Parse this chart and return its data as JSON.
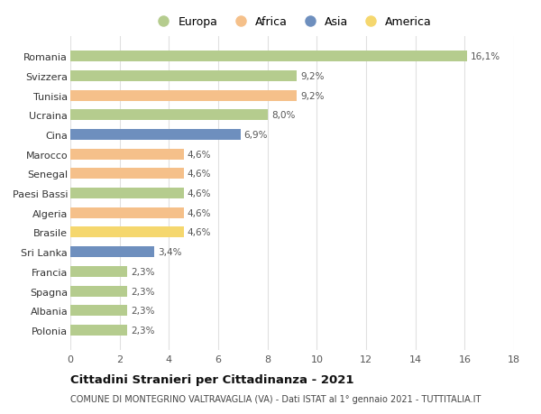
{
  "countries": [
    "Romania",
    "Svizzera",
    "Tunisia",
    "Ucraina",
    "Cina",
    "Marocco",
    "Senegal",
    "Paesi Bassi",
    "Algeria",
    "Brasile",
    "Sri Lanka",
    "Francia",
    "Spagna",
    "Albania",
    "Polonia"
  ],
  "values": [
    16.1,
    9.2,
    9.2,
    8.0,
    6.9,
    4.6,
    4.6,
    4.6,
    4.6,
    4.6,
    3.4,
    2.3,
    2.3,
    2.3,
    2.3
  ],
  "labels": [
    "16,1%",
    "9,2%",
    "9,2%",
    "8,0%",
    "6,9%",
    "4,6%",
    "4,6%",
    "4,6%",
    "4,6%",
    "4,6%",
    "3,4%",
    "2,3%",
    "2,3%",
    "2,3%",
    "2,3%"
  ],
  "continents": [
    "Europa",
    "Europa",
    "Africa",
    "Europa",
    "Asia",
    "Africa",
    "Africa",
    "Europa",
    "Africa",
    "America",
    "Asia",
    "Europa",
    "Europa",
    "Europa",
    "Europa"
  ],
  "continent_colors": {
    "Europa": "#b5cc8e",
    "Africa": "#f5c08a",
    "Asia": "#6e8fbe",
    "America": "#f5d76e"
  },
  "legend_order": [
    "Europa",
    "Africa",
    "Asia",
    "America"
  ],
  "title": "Cittadini Stranieri per Cittadinanza - 2021",
  "subtitle": "COMUNE DI MONTEGRINO VALTRAVAGLIA (VA) - Dati ISTAT al 1° gennaio 2021 - TUTTITALIA.IT",
  "xlim": [
    0,
    18
  ],
  "xticks": [
    0,
    2,
    4,
    6,
    8,
    10,
    12,
    14,
    16,
    18
  ],
  "background_color": "#ffffff",
  "grid_color": "#e0e0e0"
}
